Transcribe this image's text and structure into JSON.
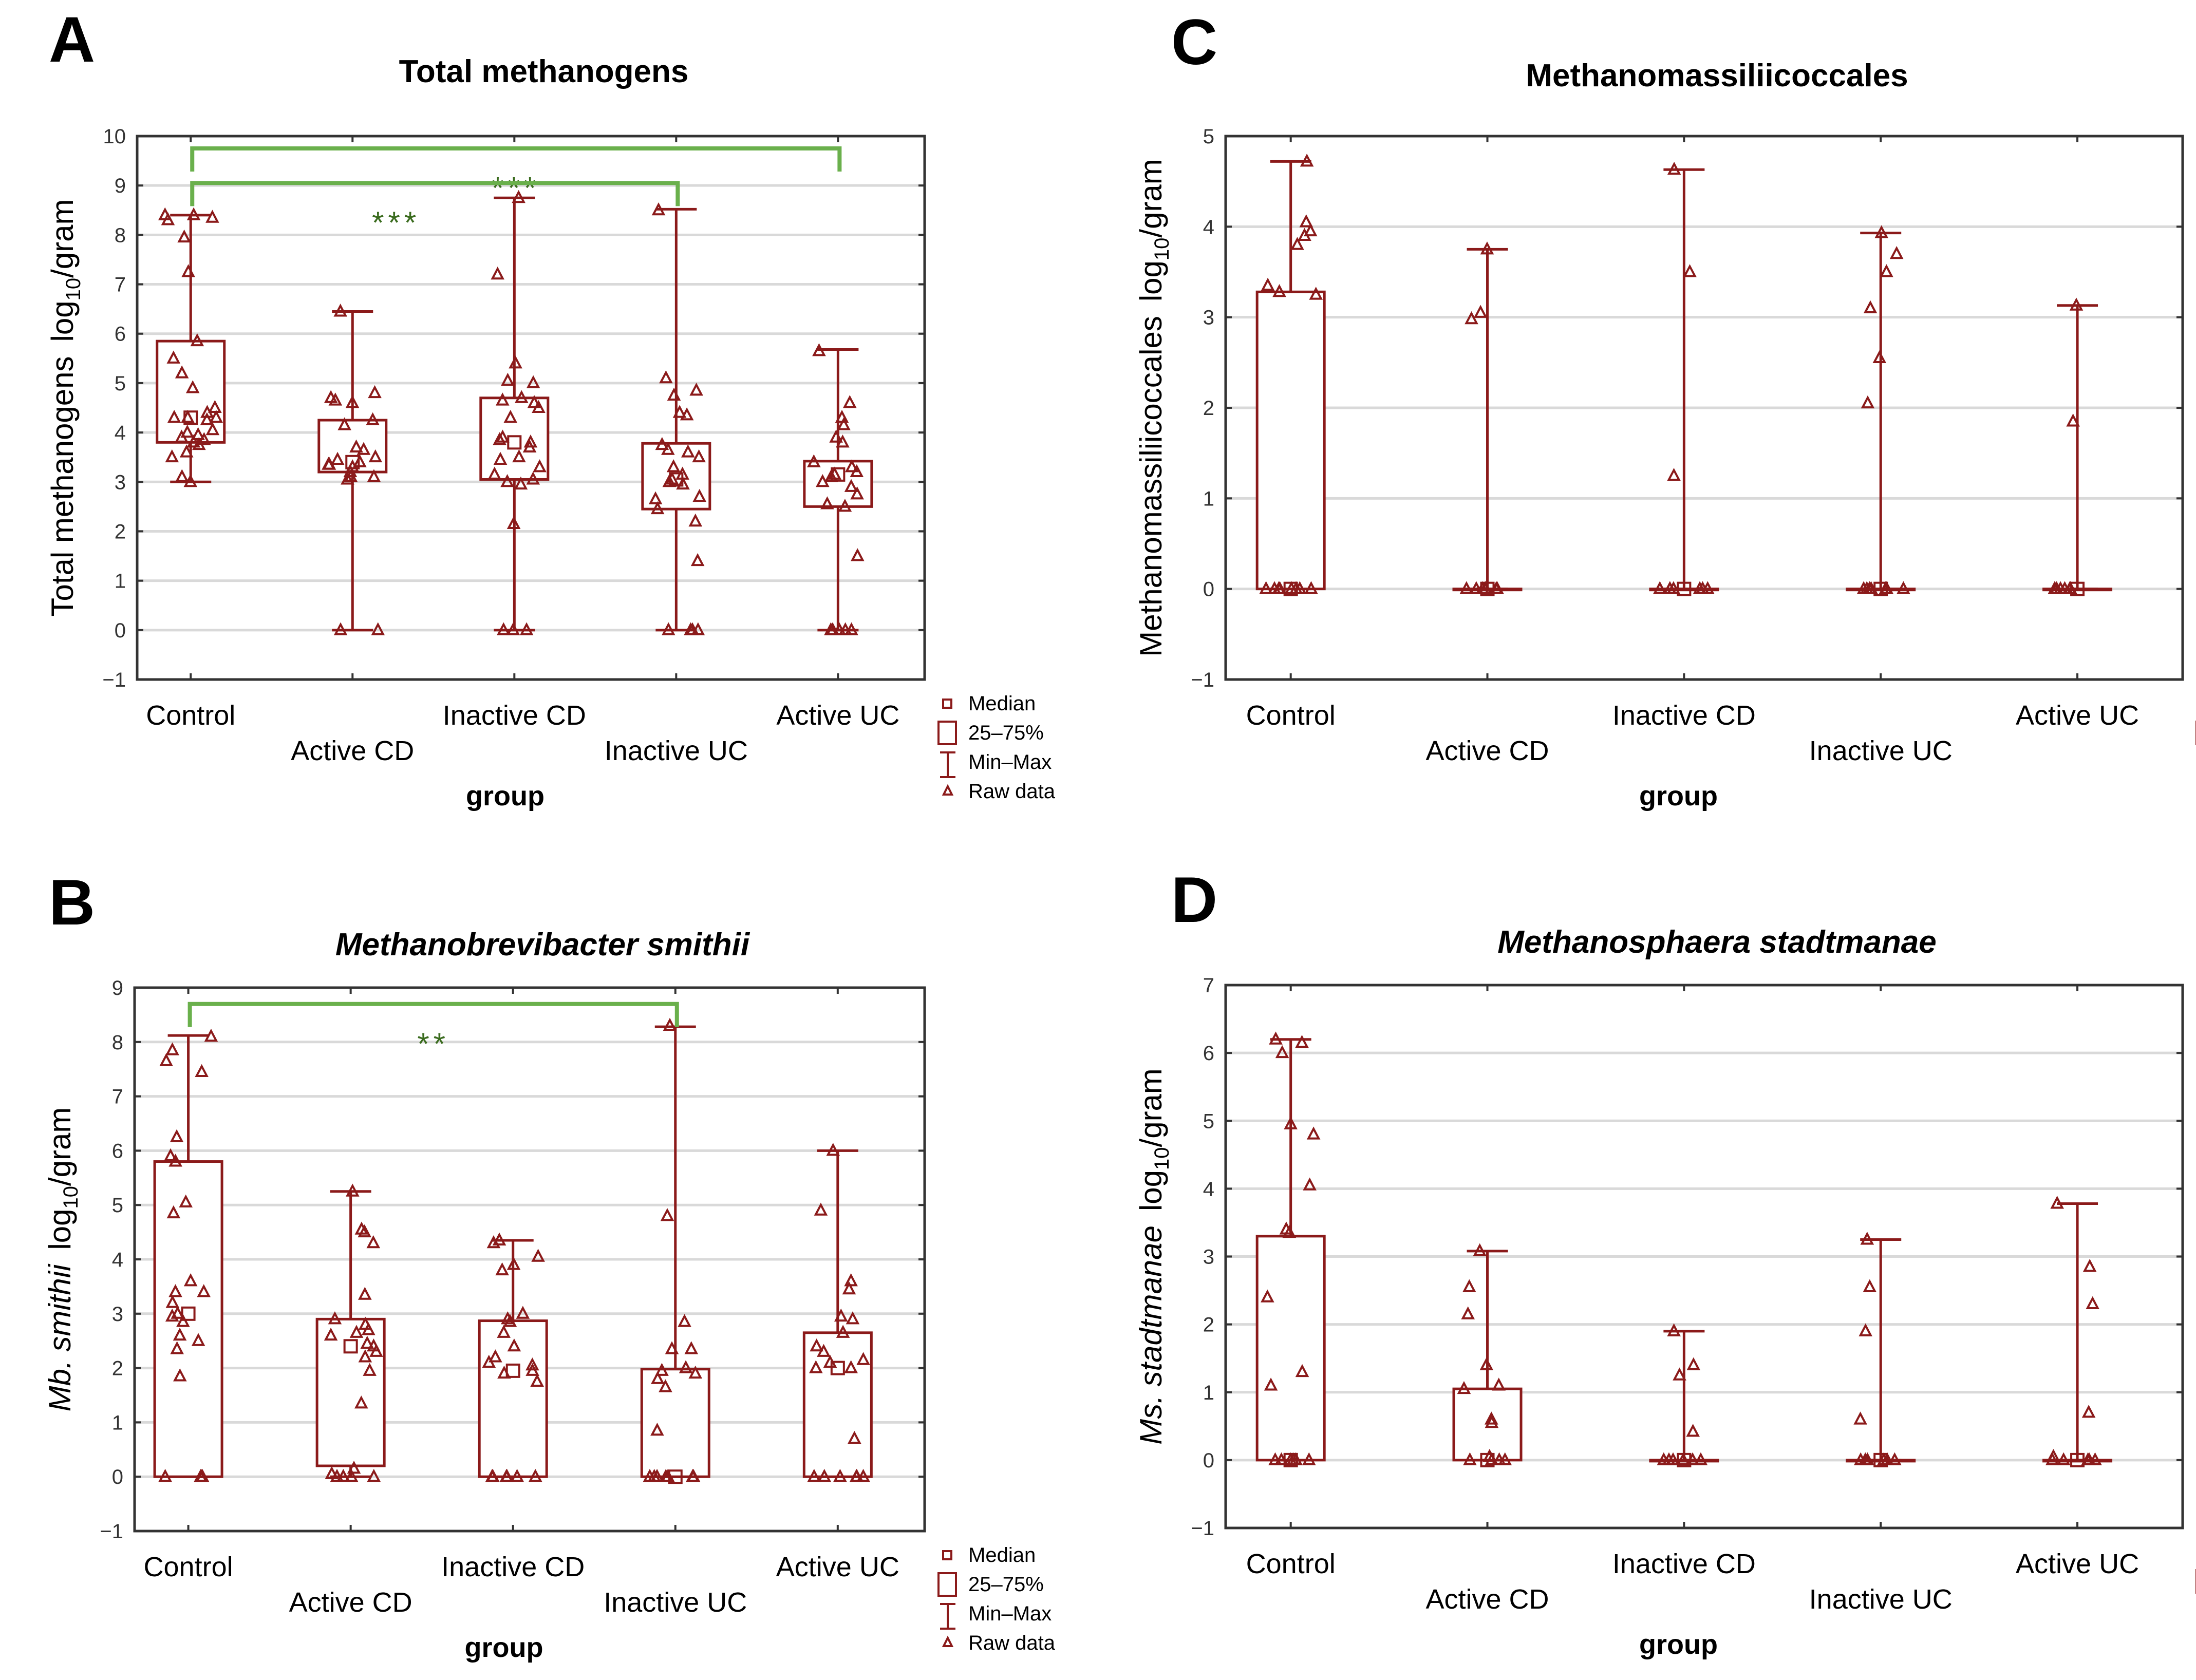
{
  "colors": {
    "box": "#8b1a1a",
    "sig": "#6ab04c",
    "sig_text": "#3a6b1e",
    "grid": "#d9d9d9",
    "axis": "#333333"
  },
  "legend": [
    "Median",
    "25–75%",
    "Min–Max",
    "Raw data"
  ],
  "chart_data": [
    {
      "panel": "A",
      "type": "box",
      "title": "Total methanogens",
      "title_italic": false,
      "ylabel": {
        "main": "Total methanogens",
        "main_italic": false,
        "unit_prefix": "log",
        "unit_sub": "10",
        "unit_suffix": "/gram"
      },
      "xlabel": "group",
      "ylim": [
        -1,
        10
      ],
      "yticks": [
        -1,
        0,
        1,
        2,
        3,
        4,
        5,
        6,
        7,
        8,
        9,
        10
      ],
      "ytick_labels": [
        "−1",
        "0",
        "1",
        "2",
        "3",
        "4",
        "5",
        "6",
        "7",
        "8",
        "9",
        "10"
      ],
      "categories": [
        "Control",
        "Active CD",
        "Inactive CD",
        "Inactive UC",
        "Active UC"
      ],
      "stats": [
        {
          "min": 3.0,
          "q1": 3.8,
          "median": 4.3,
          "q3": 5.85,
          "max": 8.4
        },
        {
          "min": 0,
          "q1": 3.2,
          "median": 3.4,
          "q3": 4.25,
          "max": 6.45
        },
        {
          "min": 0,
          "q1": 3.05,
          "median": 3.8,
          "q3": 4.7,
          "max": 8.75
        },
        {
          "min": 0,
          "q1": 2.45,
          "median": 3.05,
          "q3": 3.78,
          "max": 8.52
        },
        {
          "min": 0,
          "q1": 2.5,
          "median": 3.15,
          "q3": 3.42,
          "max": 5.68
        }
      ],
      "raw": [
        [
          8.4,
          8.35,
          8.3,
          8.4,
          7.95,
          7.25,
          5.85,
          5.5,
          5.2,
          4.9,
          4.5,
          4.4,
          4.3,
          4.3,
          4.25,
          4.3,
          4.05,
          4.0,
          3.95,
          3.9,
          3.85,
          3.8,
          3.75,
          3.6,
          3.5,
          3.1,
          3.0
        ],
        [
          6.45,
          4.8,
          4.7,
          4.65,
          4.6,
          4.25,
          4.15,
          3.7,
          3.65,
          3.5,
          3.45,
          3.4,
          3.35,
          3.35,
          3.3,
          3.2,
          3.1,
          3.1,
          3.05,
          0,
          0
        ],
        [
          8.75,
          7.2,
          5.4,
          5.05,
          5.0,
          4.7,
          4.65,
          4.6,
          4.5,
          4.3,
          3.9,
          3.85,
          3.8,
          3.7,
          3.5,
          3.45,
          3.3,
          3.15,
          3.05,
          3.0,
          2.95,
          2.15,
          0,
          0,
          0
        ],
        [
          8.5,
          5.1,
          4.85,
          4.75,
          4.4,
          4.35,
          3.75,
          3.65,
          3.6,
          3.5,
          3.3,
          3.15,
          3.05,
          3.0,
          2.95,
          2.7,
          2.65,
          2.45,
          2.2,
          1.4,
          0,
          0,
          0,
          0
        ],
        [
          5.65,
          4.6,
          4.3,
          4.15,
          3.9,
          3.8,
          3.4,
          3.3,
          3.2,
          3.15,
          3.1,
          3.0,
          2.9,
          2.75,
          2.55,
          2.5,
          1.5,
          0,
          0,
          0,
          0,
          0
        ]
      ],
      "significance": [
        {
          "from": "Control",
          "to": "Active UC",
          "bracket_y": 9.75,
          "label": "***",
          "label_y": 9.1,
          "label_at": 0.5
        },
        {
          "from": "Control",
          "to": "Inactive UC",
          "bracket_y": 9.05,
          "label": "***",
          "label_y": 8.4,
          "label_at": 0.42
        }
      ]
    },
    {
      "panel": "B",
      "type": "box",
      "title": "Methanobrevibacter  smithii",
      "title_italic": true,
      "ylabel": {
        "main": "Mb. smithii",
        "main_italic": true,
        "unit_prefix": "log",
        "unit_sub": "10",
        "unit_suffix": "/gram"
      },
      "xlabel": "group",
      "ylim": [
        -1,
        9
      ],
      "yticks": [
        -1,
        0,
        1,
        2,
        3,
        4,
        5,
        6,
        7,
        8,
        9
      ],
      "ytick_labels": [
        "−1",
        "0",
        "1",
        "2",
        "3",
        "4",
        "5",
        "6",
        "7",
        "8",
        "9"
      ],
      "categories": [
        "Control",
        "Active CD",
        "Inactive CD",
        "Inactive UC",
        "Active UC"
      ],
      "stats": [
        {
          "min": 0,
          "q1": 0,
          "median": 3.0,
          "q3": 5.8,
          "max": 8.12
        },
        {
          "min": 0,
          "q1": 0.2,
          "median": 2.4,
          "q3": 2.9,
          "max": 5.25
        },
        {
          "min": 0,
          "q1": 0,
          "median": 1.95,
          "q3": 2.87,
          "max": 4.35
        },
        {
          "min": 0,
          "q1": 0,
          "median": 0,
          "q3": 1.98,
          "max": 8.28
        },
        {
          "min": 0,
          "q1": 0,
          "median": 2.0,
          "q3": 2.65,
          "max": 6.0
        }
      ],
      "raw": [
        [
          8.1,
          7.85,
          7.65,
          7.45,
          6.25,
          5.9,
          5.8,
          5.05,
          4.85,
          3.6,
          3.4,
          3.4,
          3.2,
          3.0,
          2.95,
          2.85,
          2.6,
          2.5,
          2.35,
          1.85,
          0,
          0,
          0,
          0
        ],
        [
          5.25,
          4.55,
          4.5,
          4.3,
          3.35,
          2.9,
          2.8,
          2.7,
          2.65,
          2.6,
          2.45,
          2.4,
          2.3,
          2.2,
          1.95,
          1.35,
          0.15,
          0.05,
          0,
          0,
          0,
          0
        ],
        [
          4.35,
          4.3,
          4.05,
          3.9,
          3.8,
          3.0,
          2.9,
          2.85,
          2.65,
          2.4,
          2.2,
          2.1,
          2.05,
          1.95,
          1.9,
          1.75,
          0,
          0,
          0,
          0,
          0,
          0
        ],
        [
          8.3,
          4.8,
          2.85,
          2.35,
          2.35,
          2.0,
          1.95,
          1.9,
          1.8,
          1.65,
          0.85,
          0,
          0,
          0,
          0,
          0,
          0,
          0
        ],
        [
          6.0,
          4.9,
          3.6,
          3.45,
          2.95,
          2.9,
          2.65,
          2.4,
          2.3,
          2.15,
          2.1,
          2.0,
          2.0,
          0.7,
          0,
          0,
          0,
          0,
          0,
          0
        ]
      ],
      "significance": [
        {
          "from": "Control",
          "to": "Inactive UC",
          "bracket_y": 8.7,
          "label": "**",
          "label_y": 8.1,
          "label_at": 0.5
        }
      ]
    },
    {
      "panel": "C",
      "type": "box",
      "title": "Methanomassiliicoccales",
      "title_italic": false,
      "ylabel": {
        "main": "Methanomassiliicoccales",
        "main_italic": false,
        "unit_prefix": "log",
        "unit_sub": "10",
        "unit_suffix": "/gram"
      },
      "xlabel": "group",
      "ylim": [
        -1,
        5
      ],
      "yticks": [
        -1,
        0,
        1,
        2,
        3,
        4,
        5
      ],
      "ytick_labels": [
        "−1",
        "0",
        "1",
        "2",
        "3",
        "4",
        "5"
      ],
      "categories": [
        "Control",
        "Active CD",
        "Inactive CD",
        "Inactive UC",
        "Active UC"
      ],
      "stats": [
        {
          "min": 0,
          "q1": 0,
          "median": 0,
          "q3": 3.28,
          "max": 4.72
        },
        {
          "min": 0,
          "q1": 0,
          "median": 0,
          "q3": 0,
          "max": 3.75
        },
        {
          "min": 0,
          "q1": 0,
          "median": 0,
          "q3": 0,
          "max": 4.63
        },
        {
          "min": 0,
          "q1": 0,
          "median": 0,
          "q3": 0,
          "max": 3.93
        },
        {
          "min": 0,
          "q1": 0,
          "median": 0,
          "q3": 0,
          "max": 3.13
        }
      ],
      "raw": [
        [
          4.72,
          4.05,
          3.95,
          3.9,
          3.8,
          3.35,
          3.28,
          3.25,
          0,
          0,
          0,
          0,
          0,
          0,
          0,
          0
        ],
        [
          3.75,
          3.05,
          2.98,
          0,
          0,
          0,
          0,
          0,
          0,
          0
        ],
        [
          4.63,
          3.5,
          1.25,
          0,
          0,
          0,
          0,
          0,
          0,
          0
        ],
        [
          3.93,
          3.7,
          3.5,
          3.1,
          2.55,
          2.05,
          0,
          0,
          0,
          0,
          0,
          0,
          0
        ],
        [
          3.13,
          1.85,
          0,
          0,
          0,
          0,
          0,
          0,
          0
        ]
      ],
      "significance": []
    },
    {
      "panel": "D",
      "type": "box",
      "title": "Methanosphaera stadtmanae",
      "title_italic": true,
      "ylabel": {
        "main": "Ms. stadtmanae",
        "main_italic": true,
        "unit_prefix": "log",
        "unit_sub": "10",
        "unit_suffix": "/gram"
      },
      "xlabel": "group",
      "ylim": [
        -1,
        7
      ],
      "yticks": [
        -1,
        0,
        1,
        2,
        3,
        4,
        5,
        6,
        7
      ],
      "ytick_labels": [
        "−1",
        "0",
        "1",
        "2",
        "3",
        "4",
        "5",
        "6",
        "7"
      ],
      "categories": [
        "Control",
        "Active CD",
        "Inactive CD",
        "Inactive UC",
        "Active UC"
      ],
      "stats": [
        {
          "min": 0,
          "q1": 0,
          "median": 0,
          "q3": 3.3,
          "max": 6.2
        },
        {
          "min": 0,
          "q1": 0,
          "median": 0,
          "q3": 1.05,
          "max": 3.08
        },
        {
          "min": 0,
          "q1": 0,
          "median": 0,
          "q3": 0,
          "max": 1.9
        },
        {
          "min": 0,
          "q1": 0,
          "median": 0,
          "q3": 0,
          "max": 3.25
        },
        {
          "min": 0,
          "q1": 0,
          "median": 0,
          "q3": 0,
          "max": 3.78
        }
      ],
      "raw": [
        [
          6.2,
          6.15,
          6.0,
          4.95,
          4.8,
          4.05,
          3.4,
          3.35,
          2.4,
          1.3,
          1.1,
          0,
          0,
          0,
          0,
          0,
          0
        ],
        [
          3.08,
          2.55,
          2.15,
          1.4,
          1.1,
          1.05,
          0.6,
          0.55,
          0.05,
          0,
          0,
          0,
          0
        ],
        [
          1.9,
          1.4,
          1.25,
          0.42,
          0,
          0,
          0,
          0,
          0,
          0
        ],
        [
          3.25,
          2.55,
          1.9,
          0.6,
          0,
          0,
          0,
          0,
          0,
          0
        ],
        [
          3.78,
          2.85,
          2.3,
          0.7,
          0.05,
          0,
          0,
          0,
          0,
          0
        ]
      ],
      "significance": []
    }
  ]
}
